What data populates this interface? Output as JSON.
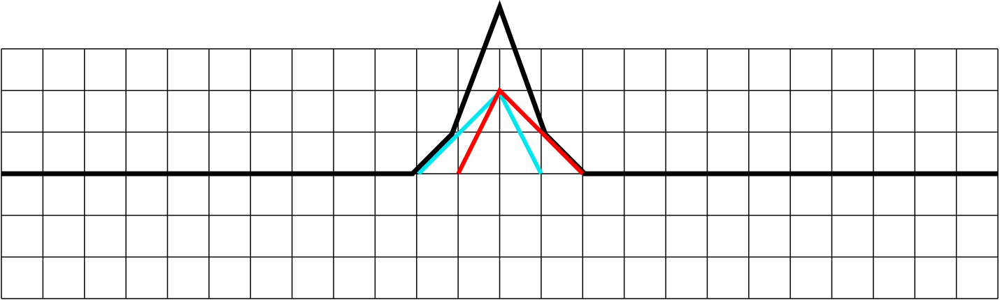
{
  "chart_data": {
    "type": "line",
    "title": "",
    "xlabel": "",
    "ylabel": "",
    "grid": true,
    "xlim": [
      0,
      24
    ],
    "ylim": [
      -3,
      3
    ],
    "series": [
      {
        "color": "#000000",
        "points": [
          [
            0,
            0
          ],
          [
            9.9,
            0
          ],
          [
            10.85,
            0.95
          ],
          [
            12,
            4
          ],
          [
            13.1,
            0.95
          ],
          [
            14.05,
            0
          ],
          [
            24,
            0
          ]
        ]
      },
      {
        "color": "#00e5ee",
        "points": [
          [
            10.05,
            0
          ],
          [
            12,
            1.95
          ],
          [
            13,
            0
          ]
        ]
      },
      {
        "color": "#ff0000",
        "points": [
          [
            11,
            0
          ],
          [
            12,
            2
          ],
          [
            14,
            0
          ]
        ]
      }
    ]
  }
}
